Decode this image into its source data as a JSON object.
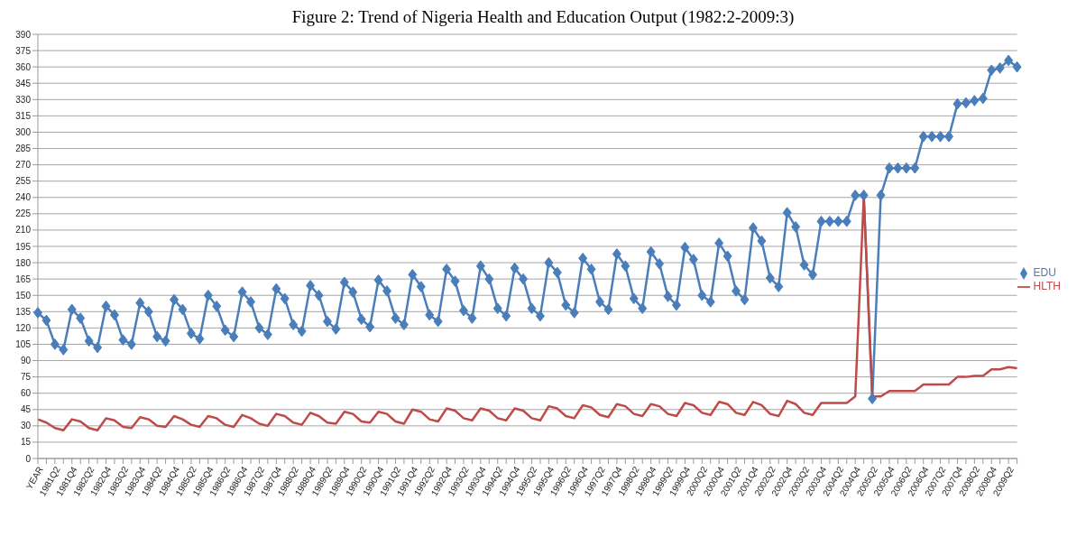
{
  "chart_data": {
    "type": "line",
    "title": "Figure 2: Trend of Nigeria Health and Education Output (1982:2-2009:3)",
    "categories": [
      "YEAR",
      null,
      "1981Q2",
      null,
      "1981Q4",
      null,
      "1982Q2",
      null,
      "1982Q4",
      null,
      "1983Q2",
      null,
      "1983Q4",
      null,
      "1984Q2",
      null,
      "1984Q4",
      null,
      "1985Q2",
      null,
      "1985Q4",
      null,
      "1986Q2",
      null,
      "1986Q4",
      null,
      "1987Q2",
      null,
      "1987Q4",
      null,
      "1988Q2",
      null,
      "1988Q4",
      null,
      "1989Q2",
      null,
      "1989Q4",
      null,
      "1990Q2",
      null,
      "1990Q4",
      null,
      "1991Q2",
      null,
      "1991Q4",
      null,
      "1992Q2",
      null,
      "1992Q4",
      null,
      "1993Q2",
      null,
      "1993Q4",
      null,
      "1994Q2",
      null,
      "1994Q4",
      null,
      "1995Q2",
      null,
      "1995Q4",
      null,
      "1996Q2",
      null,
      "1996Q4",
      null,
      "1997Q2",
      null,
      "1997Q4",
      null,
      "1998Q2",
      null,
      "1998Q4",
      null,
      "1999Q2",
      null,
      "1999Q4",
      null,
      "2000Q2",
      null,
      "2000Q4",
      null,
      "2001Q2",
      null,
      "2001Q4",
      null,
      "2002Q2",
      null,
      "2002Q4",
      null,
      "2003Q2",
      null,
      "2003Q4",
      null,
      "2004Q2",
      null,
      "2004Q4",
      null,
      "2005Q2",
      null,
      "2005Q4",
      null,
      "2006Q2",
      null,
      "2006Q4",
      null,
      "2007Q2",
      null,
      "2007Q4",
      null,
      "2008Q2",
      null,
      "2008Q4",
      null,
      "2009Q2",
      null
    ],
    "series": [
      {
        "name": "EDU",
        "color": "#4a7ebb",
        "marker": "diamond",
        "values": [
          134,
          127,
          105,
          100,
          137,
          129,
          108,
          102,
          140,
          132,
          109,
          105,
          143,
          135,
          112,
          108,
          146,
          137,
          115,
          110,
          150,
          140,
          118,
          112,
          153,
          144,
          120,
          114,
          156,
          147,
          123,
          117,
          159,
          150,
          126,
          119,
          162,
          153,
          128,
          121,
          164,
          154,
          129,
          123,
          169,
          158,
          132,
          126,
          174,
          163,
          136,
          129,
          177,
          165,
          138,
          131,
          175,
          165,
          138,
          131,
          180,
          171,
          141,
          134,
          184,
          174,
          144,
          137,
          188,
          177,
          147,
          138,
          190,
          179,
          149,
          141,
          194,
          183,
          150,
          144,
          198,
          186,
          154,
          146,
          212,
          200,
          166,
          158,
          226,
          213,
          178,
          169,
          218,
          218,
          218,
          218,
          242,
          242,
          55,
          242,
          267,
          267,
          267,
          267,
          296,
          296,
          296,
          296,
          326,
          327,
          329,
          331,
          357,
          359,
          366,
          360
        ]
      },
      {
        "name": "HLTH",
        "color": "#be4b48",
        "marker": "none",
        "values": [
          36,
          33,
          28,
          26,
          36,
          34,
          28,
          26,
          37,
          35,
          29,
          28,
          38,
          36,
          30,
          29,
          39,
          36,
          31,
          29,
          39,
          37,
          31,
          29,
          40,
          37,
          32,
          30,
          41,
          39,
          33,
          31,
          42,
          39,
          33,
          32,
          43,
          41,
          34,
          33,
          43,
          41,
          34,
          32,
          45,
          43,
          36,
          34,
          46,
          44,
          37,
          35,
          46,
          44,
          37,
          35,
          46,
          44,
          37,
          35,
          48,
          46,
          39,
          37,
          49,
          47,
          40,
          38,
          50,
          48,
          41,
          39,
          50,
          48,
          41,
          39,
          51,
          49,
          42,
          40,
          52,
          50,
          42,
          40,
          52,
          49,
          41,
          39,
          53,
          50,
          42,
          40,
          51,
          51,
          51,
          51,
          57,
          241,
          57,
          57,
          62,
          62,
          62,
          62,
          68,
          68,
          68,
          68,
          75,
          75,
          76,
          76,
          82,
          82,
          84,
          83
        ]
      }
    ],
    "ylim": [
      0,
      390
    ],
    "yticks": [
      0,
      15,
      30,
      45,
      60,
      75,
      90,
      105,
      120,
      135,
      150,
      165,
      180,
      195,
      210,
      225,
      240,
      255,
      270,
      285,
      300,
      315,
      330,
      345,
      360,
      375,
      390
    ],
    "grid": "y",
    "legend": "right"
  }
}
